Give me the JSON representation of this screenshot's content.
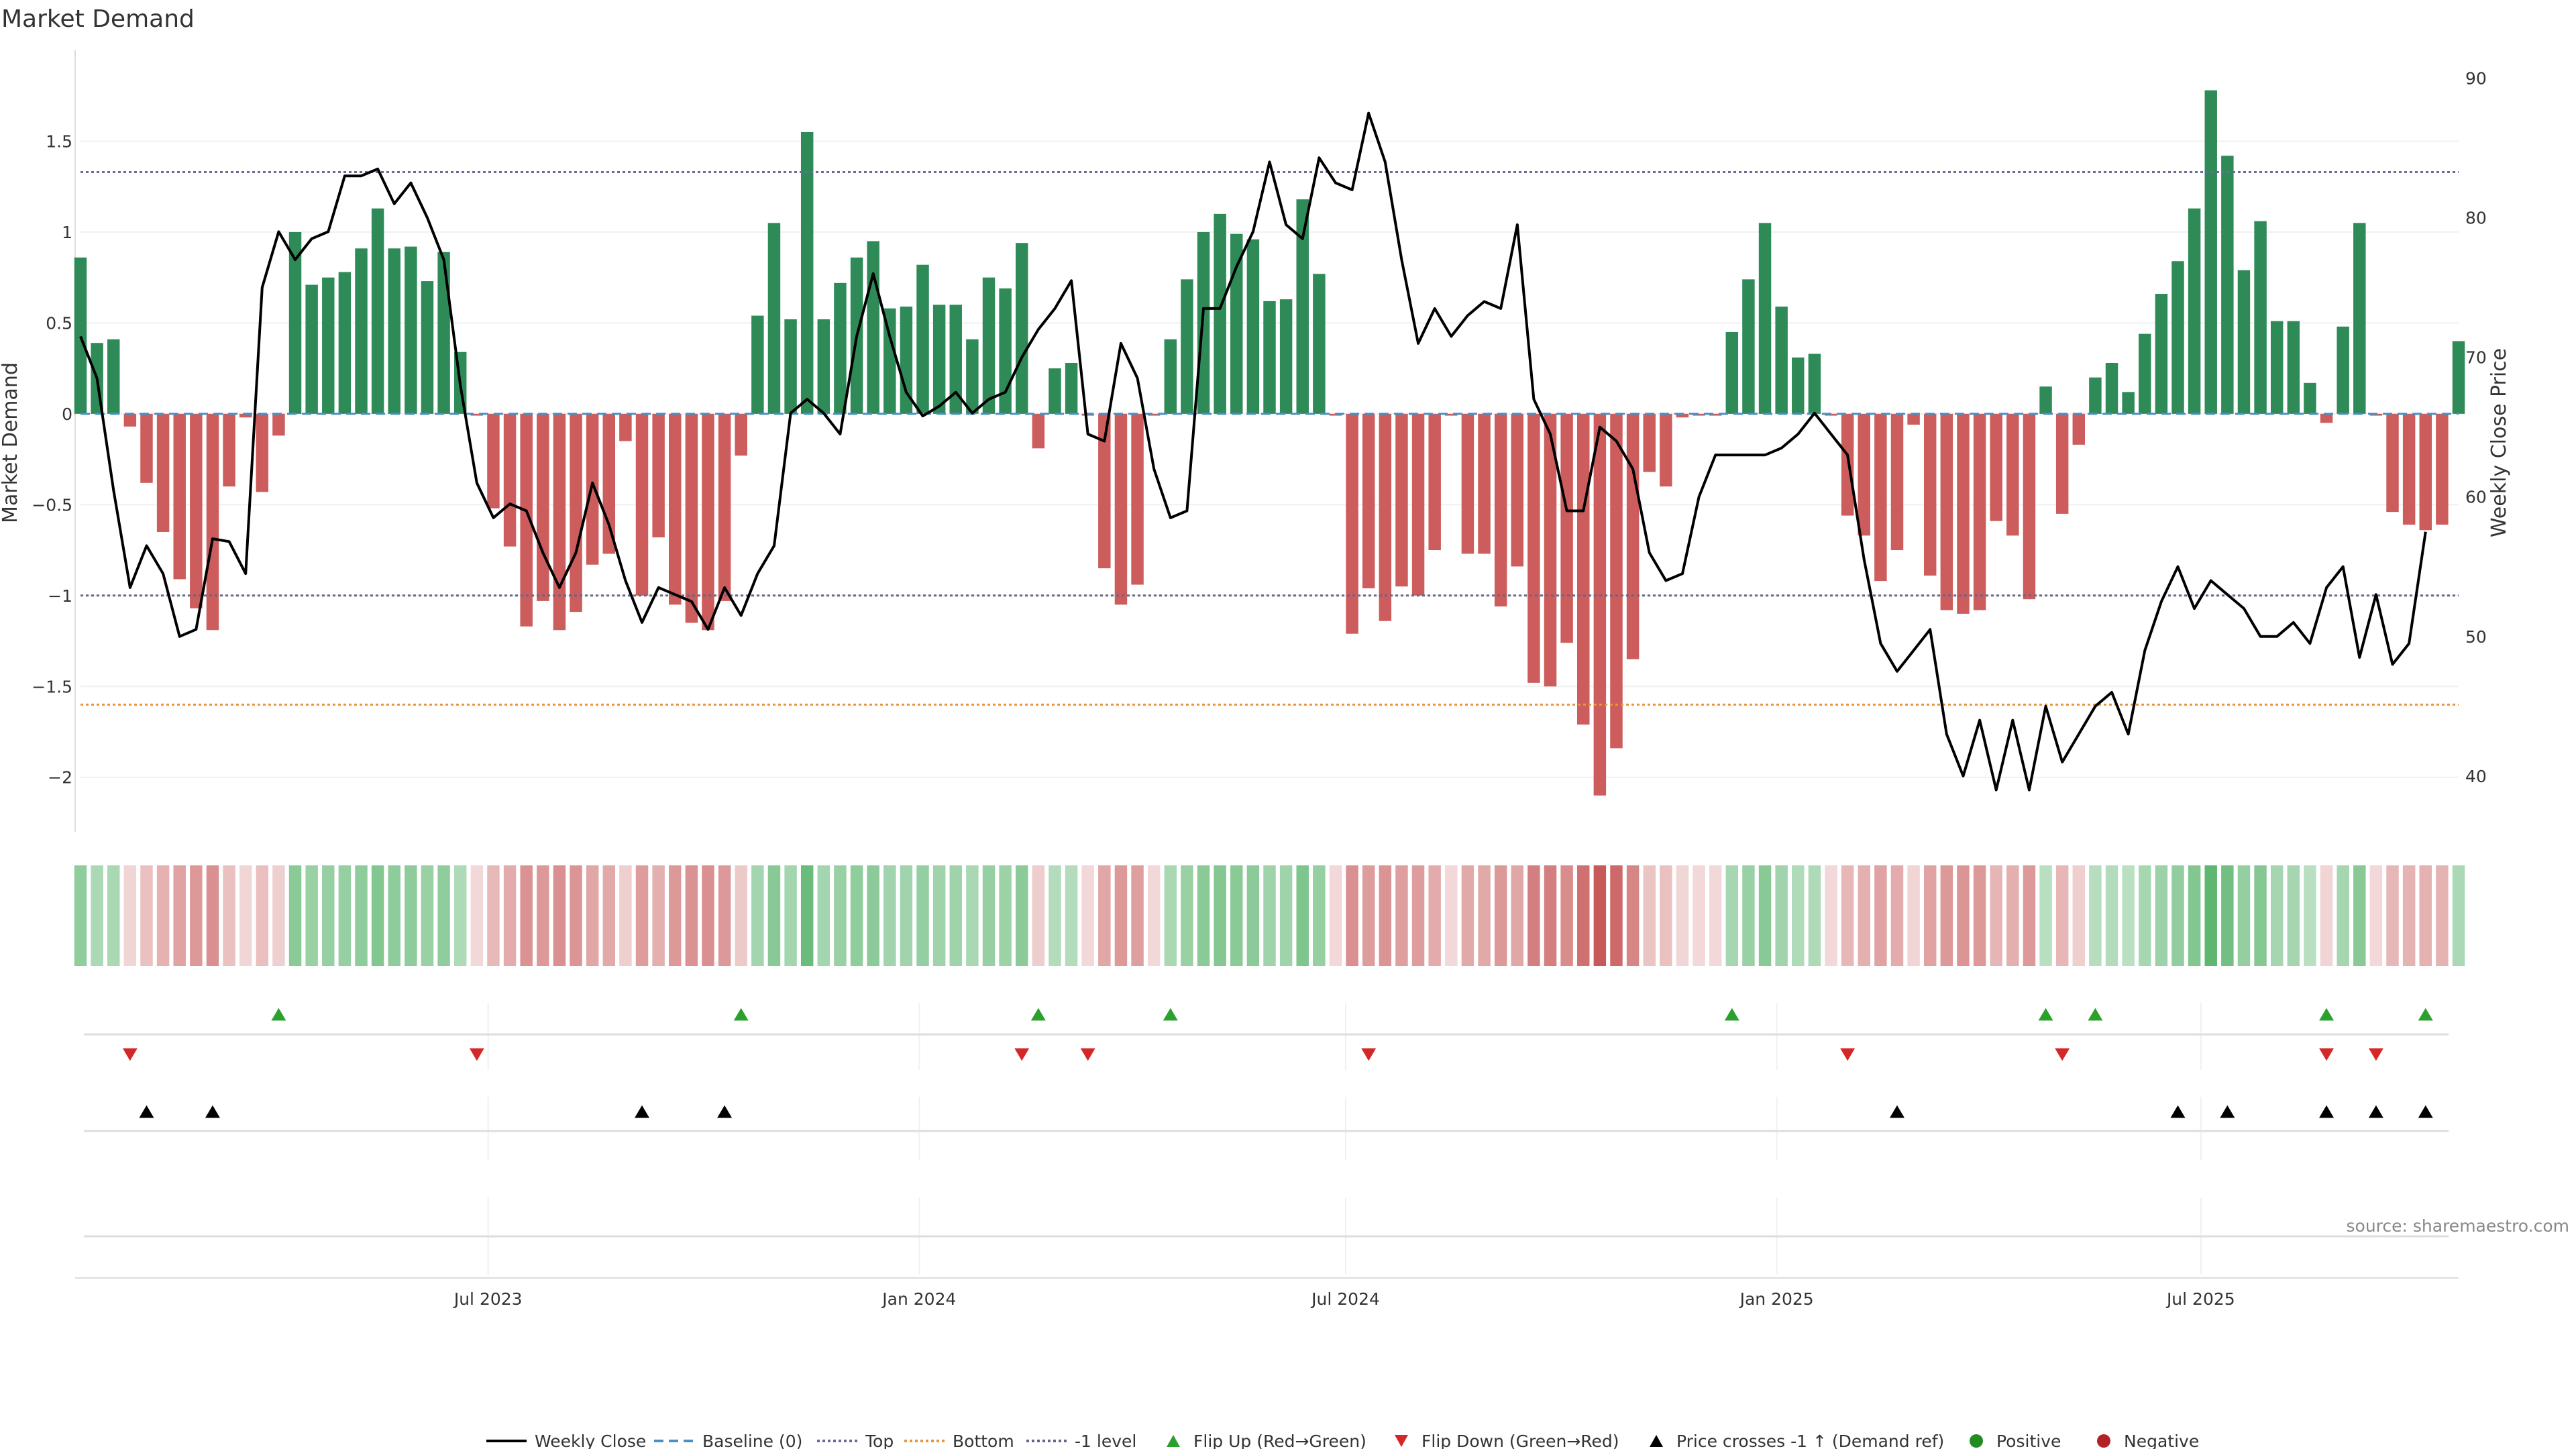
{
  "chart_data": {
    "type": "bar",
    "title": "Market Demand",
    "ylabel_left": "Market Demand",
    "ylabel_right": "Weekly Close Price",
    "ylim_left": [
      -2.3,
      2.0
    ],
    "ylim_right": [
      36,
      92
    ],
    "yticks_left": [
      1.5,
      1,
      0.5,
      0,
      -0.5,
      -1,
      -1.5,
      -2
    ],
    "yticks_left_labels": [
      "1.5",
      "1",
      "0.5",
      "0",
      "−0.5",
      "−1",
      "−1.5",
      "−2"
    ],
    "yticks_right": [
      90,
      80,
      70,
      60,
      50,
      40
    ],
    "x_start": "2023-01-08",
    "x_end": "2025-10-19",
    "xticks": [
      "2023-07-01",
      "2024-01-01",
      "2024-07-01",
      "2025-01-01",
      "2025-07-01"
    ],
    "xtick_labels": [
      "Jul 2023",
      "Jan 2024",
      "Jul 2024",
      "Jan 2025",
      "Jul 2025"
    ],
    "reference_lines": {
      "top": 1.33,
      "bottom": -1.6,
      "minus_one": -1.0,
      "baseline": 0
    },
    "series": [
      {
        "name": "Market Demand",
        "type": "bar",
        "values": [
          0.86,
          0.39,
          0.41,
          -0.07,
          -0.38,
          -0.65,
          -0.91,
          -1.07,
          -1.19,
          -0.4,
          -0.02,
          -0.43,
          -0.12,
          1.0,
          0.71,
          0.75,
          0.78,
          0.91,
          1.13,
          0.91,
          0.92,
          0.73,
          0.89,
          0.34,
          -0.01,
          -0.52,
          -0.73,
          -1.17,
          -1.03,
          -1.19,
          -1.09,
          -0.83,
          -0.77,
          -0.15,
          -1.0,
          -0.68,
          -1.05,
          -1.15,
          -1.19,
          -1.03,
          -0.23,
          0.54,
          1.05,
          0.52,
          1.55,
          0.52,
          0.72,
          0.86,
          0.95,
          0.58,
          0.59,
          0.82,
          0.6,
          0.6,
          0.41,
          0.75,
          0.69,
          0.94,
          -0.19,
          0.25,
          0.28,
          -0.01,
          -0.85,
          -1.05,
          -0.94,
          -0.01,
          0.41,
          0.74,
          1.0,
          1.1,
          0.99,
          0.96,
          0.62,
          0.63,
          1.18,
          0.77,
          -0.01,
          -1.21,
          -0.96,
          -1.14,
          -0.95,
          -1.0,
          -0.75,
          -0.01,
          -0.77,
          -0.77,
          -1.06,
          -0.84,
          -1.48,
          -1.5,
          -1.26,
          -1.71,
          -2.1,
          -1.84,
          -1.35,
          -0.32,
          -0.4,
          -0.02,
          -0.01,
          -0.01,
          0.45,
          0.74,
          1.05,
          0.59,
          0.31,
          0.33,
          -0.01,
          -0.56,
          -0.67,
          -0.92,
          -0.75,
          -0.06,
          -0.89,
          -1.08,
          -1.1,
          -1.08,
          -0.59,
          -0.67,
          -1.02,
          0.15,
          -0.55,
          -0.17,
          0.2,
          0.28,
          0.12,
          0.44,
          0.66,
          0.84,
          1.13,
          1.78,
          1.42,
          0.79,
          1.06,
          0.51,
          0.51,
          0.17,
          -0.05,
          0.48,
          1.05,
          -0.01,
          -0.54,
          -0.61,
          -0.64,
          -0.61,
          0.4
        ]
      },
      {
        "name": "Weekly Close",
        "type": "line",
        "axis": "right",
        "values": [
          71.5,
          68.5,
          60.5,
          53.5,
          56.5,
          54.5,
          50,
          50.5,
          57,
          56.8,
          54.5,
          75,
          79,
          77,
          78.5,
          79,
          83,
          83,
          83.5,
          81,
          82.5,
          80,
          77,
          68,
          61,
          58.5,
          59.5,
          59,
          56,
          53.5,
          56,
          61,
          58,
          54,
          51,
          53.5,
          53,
          52.5,
          50.5,
          53.5,
          51.5,
          54.5,
          56.5,
          66,
          67,
          66,
          64.5,
          71.5,
          76,
          71.5,
          67.5,
          65.8,
          66.5,
          67.5,
          66,
          67,
          67.5,
          70,
          72,
          73.5,
          75.5,
          64.5,
          64,
          71,
          68.5,
          62,
          58.5,
          59,
          73.5,
          73.5,
          76.5,
          79,
          84,
          79.5,
          78.5,
          84.3,
          82.5,
          82,
          87.5,
          84,
          77,
          71,
          73.5,
          71.5,
          73,
          74,
          73.5,
          79.5,
          67,
          64.5,
          59,
          59,
          65,
          64,
          62,
          56,
          54,
          54.5,
          60,
          63,
          63,
          63,
          63,
          63.5,
          64.5,
          66,
          64.5,
          63,
          55.5,
          49.5,
          47.5,
          49,
          50.5,
          43,
          40,
          44,
          39,
          44,
          39,
          45,
          41,
          43,
          45,
          46,
          43,
          49,
          52.5,
          55,
          52,
          54,
          53,
          52,
          50,
          50,
          51,
          49.5,
          53.5,
          55,
          48.5,
          53,
          48,
          49.5,
          57.5
        ]
      }
    ],
    "heatmap_values": [
      0.86,
      0.39,
      0.41,
      -0.07,
      -0.38,
      -0.65,
      -0.91,
      -1.07,
      -1.19,
      -0.4,
      -0.02,
      -0.43,
      -0.12,
      1.0,
      0.71,
      0.75,
      0.78,
      0.91,
      1.13,
      0.91,
      0.92,
      0.73,
      0.89,
      0.34,
      -0.01,
      -0.52,
      -0.73,
      -1.17,
      -1.03,
      -1.19,
      -1.09,
      -0.83,
      -0.77,
      -0.15,
      -1.0,
      -0.68,
      -1.05,
      -1.15,
      -1.19,
      -1.03,
      -0.23,
      0.54,
      1.05,
      0.52,
      1.55,
      0.52,
      0.72,
      0.86,
      0.95,
      0.58,
      0.59,
      0.82,
      0.6,
      0.6,
      0.41,
      0.75,
      0.69,
      0.94,
      -0.19,
      0.25,
      0.28,
      -0.01,
      -0.85,
      -1.05,
      -0.94,
      -0.01,
      0.41,
      0.74,
      1.0,
      1.1,
      0.99,
      0.96,
      0.62,
      0.63,
      1.18,
      0.77,
      -0.01,
      -1.21,
      -0.96,
      -1.14,
      -0.95,
      -1.0,
      -0.75,
      -0.01,
      -0.77,
      -0.77,
      -1.06,
      -0.84,
      -1.48,
      -1.5,
      -1.26,
      -1.71,
      -2.1,
      -1.84,
      -1.35,
      -0.32,
      -0.4,
      -0.02,
      -0.01,
      -0.01,
      0.45,
      0.74,
      1.05,
      0.59,
      0.31,
      0.33,
      -0.01,
      -0.56,
      -0.67,
      -0.92,
      -0.75,
      -0.06,
      -0.89,
      -1.08,
      -1.1,
      -1.08,
      -0.59,
      -0.67,
      -1.02,
      0.15,
      -0.55,
      -0.17,
      0.2,
      0.28,
      0.12,
      0.44,
      0.66,
      0.84,
      1.13,
      1.78,
      1.42,
      0.79,
      1.06,
      0.51,
      0.51,
      0.17,
      -0.05,
      0.48,
      1.05,
      -0.01,
      -0.54,
      -0.61,
      -0.64,
      -0.61,
      0.4
    ],
    "flip_up_weeks": [
      12,
      40,
      58,
      66,
      100,
      119,
      122,
      136,
      142
    ],
    "flip_down_weeks": [
      3,
      24,
      57,
      61,
      78,
      107,
      120,
      136,
      139
    ],
    "price_cross_weeks": [
      4,
      8,
      34,
      39,
      110,
      127,
      130,
      136,
      139,
      142
    ],
    "legend": [
      "Weekly Close",
      "Baseline (0)",
      "Top",
      "Bottom",
      "-1 level",
      "Flip Up (Red→Green)",
      "Flip Down (Green→Red)",
      "Price crosses -1 ↑ (Demand ref)",
      "Positive",
      "Negative"
    ],
    "source": "source: sharemaestro.com"
  },
  "colors": {
    "positive_bar": "#2e8b57",
    "negative_bar": "#cd5c5c",
    "line": "#000000",
    "baseline": "#4a90c2",
    "top": "#6a6a9a",
    "bottom": "#e8953a",
    "minus_one": "#666688",
    "flip_up": "#2ca02c",
    "flip_down": "#d62728",
    "price_cross": "#000000",
    "legend_positive": "#228b22",
    "legend_negative": "#b22222"
  }
}
